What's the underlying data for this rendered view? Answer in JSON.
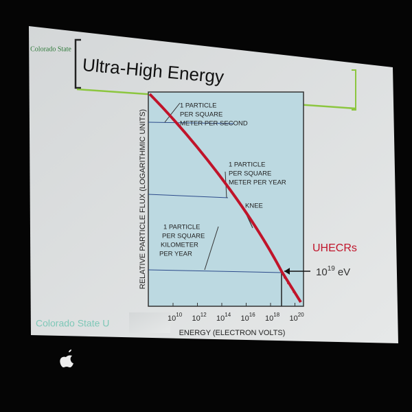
{
  "slide": {
    "logo": "Colorado State",
    "title": "Ultra-High Energy",
    "footer": "Colorado State U",
    "chart": {
      "y_label": "RELATIVE PARTICLE FLUX (LOGARITHMIC UNITS)",
      "x_label": "ENERGY (ELECTRON VOLTS)",
      "x_ticks": [
        {
          "base": "10",
          "exponent": "10"
        },
        {
          "base": "10",
          "exponent": "12"
        },
        {
          "base": "10",
          "exponent": "14"
        },
        {
          "base": "10",
          "exponent": "16"
        },
        {
          "base": "10",
          "exponent": "18"
        },
        {
          "base": "10",
          "exponent": "20"
        }
      ],
      "annotations": [
        {
          "lines": [
            "1 PARTICLE",
            "PER SQUARE",
            "METER PER SECOND"
          ]
        },
        {
          "lines": [
            "1 PARTICLE",
            "PER SQUARE",
            "METER PER YEAR"
          ]
        },
        {
          "lines": [
            "KNEE"
          ]
        },
        {
          "lines": [
            "1 PARTICLE",
            "PER SQUARE",
            "KILOMETER",
            "PER YEAR"
          ]
        }
      ]
    },
    "callout": {
      "label": "UHECRs",
      "energy": {
        "base": "10",
        "exponent": "19",
        "unit": "eV"
      }
    }
  }
}
